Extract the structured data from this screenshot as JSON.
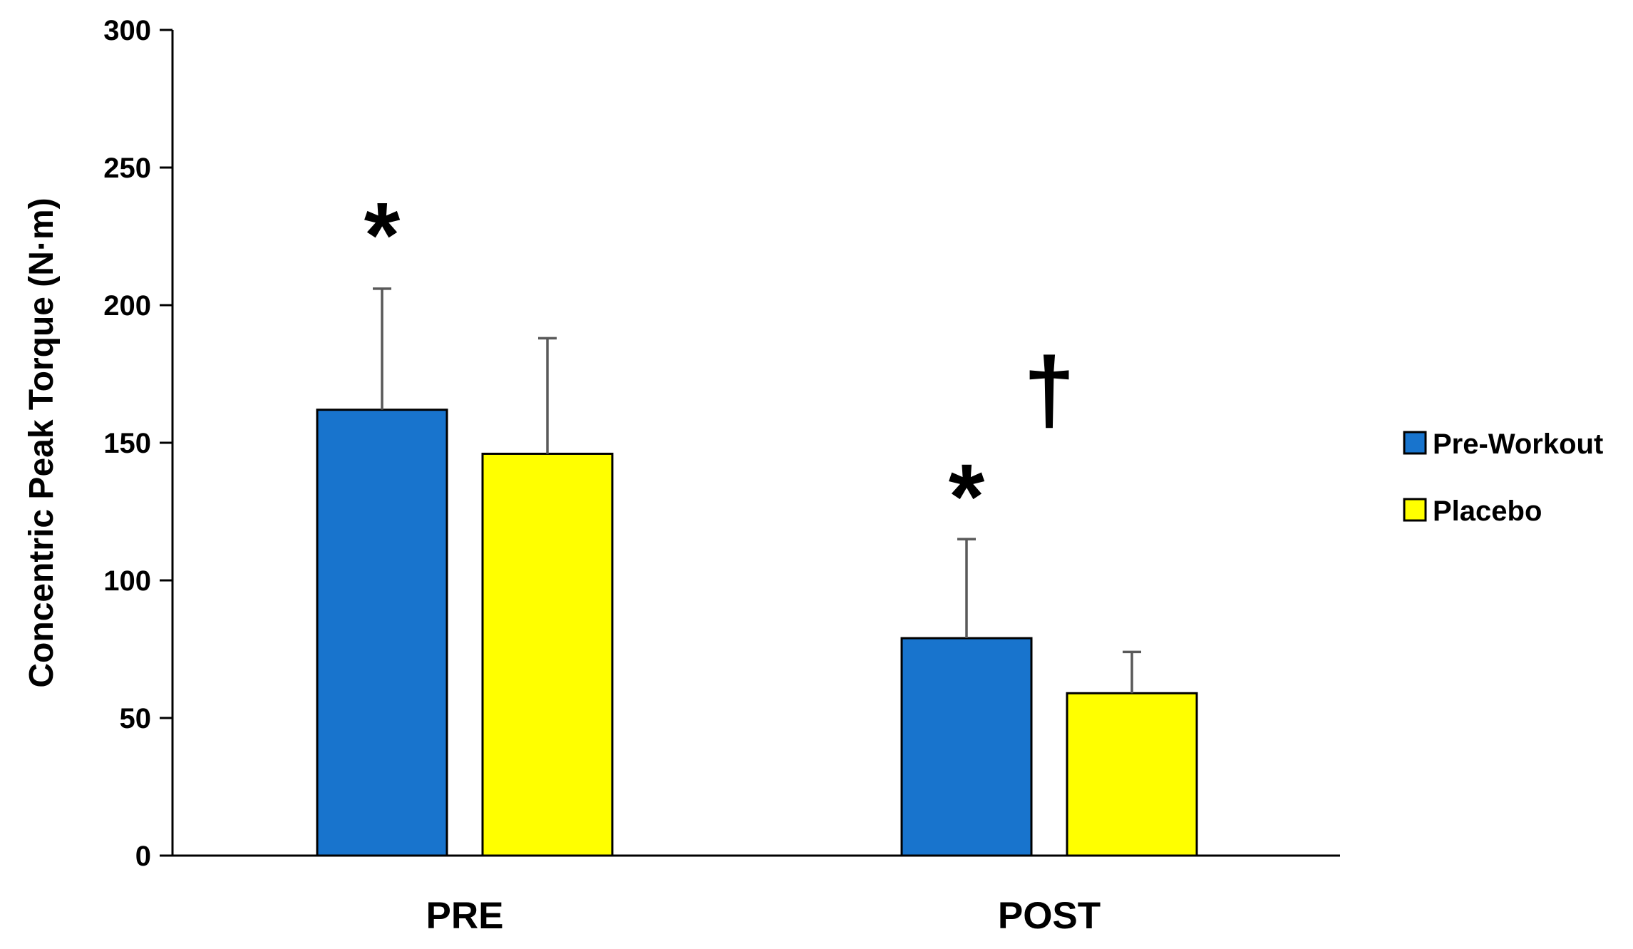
{
  "chart_data": {
    "type": "bar",
    "title": "",
    "xlabel": "",
    "ylabel": "Concentric Peak Torque (N·m)",
    "ylim": [
      0,
      300
    ],
    "yticks": [
      0,
      50,
      100,
      150,
      200,
      250,
      300
    ],
    "categories": [
      "PRE",
      "POST"
    ],
    "grid": false,
    "legend_position": "right",
    "series": [
      {
        "name": "Pre-Workout",
        "color": "#1874CD",
        "values": [
          162,
          79
        ],
        "errors": [
          44,
          36
        ]
      },
      {
        "name": "Placebo",
        "color": "#FFFF00",
        "values": [
          146,
          59
        ],
        "errors": [
          42,
          15
        ]
      }
    ],
    "annotations": [
      {
        "text": "*",
        "category": 0,
        "series": 0,
        "y": 232
      },
      {
        "text": "*",
        "category": 1,
        "series": 0,
        "y": 137
      },
      {
        "text": "†",
        "category": 1,
        "series": "between",
        "y": 168
      }
    ]
  }
}
